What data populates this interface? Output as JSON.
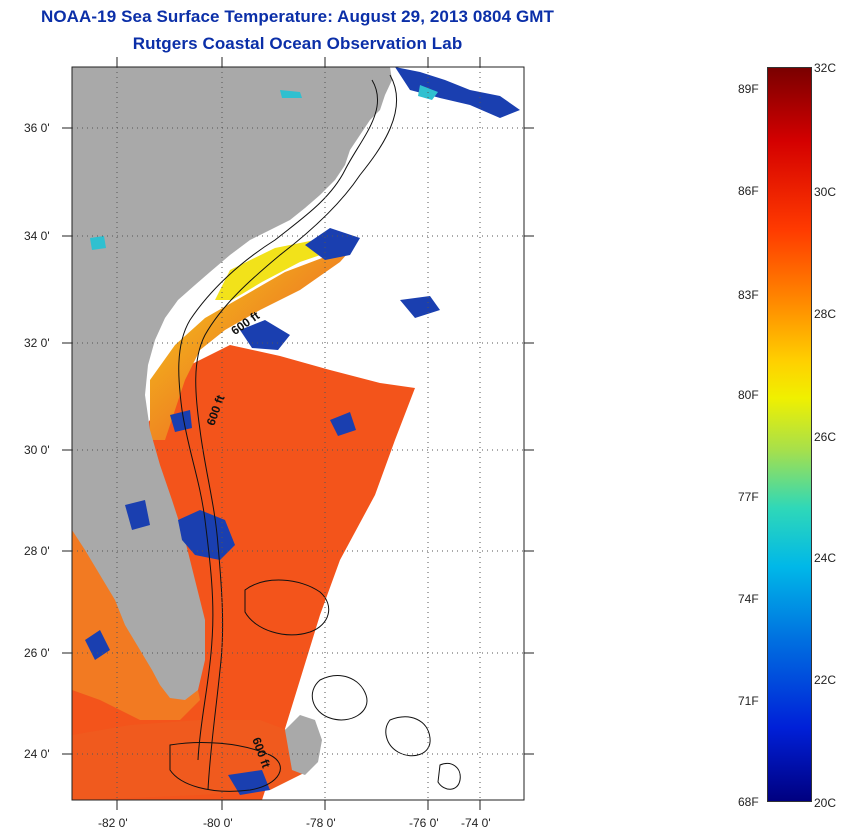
{
  "header": {
    "title": "NOAA-19 Sea Surface Temperature:  August 29, 2013 0804 GMT",
    "subtitle": "Rutgers Coastal Ocean Observation Lab"
  },
  "map": {
    "lat_labels": [
      "36 0'",
      "34 0'",
      "32 0'",
      "30 0'",
      "28 0'",
      "26 0'",
      "24 0'"
    ],
    "lon_labels": [
      "-82 0'",
      "-80 0'",
      "-78 0'",
      "-76 0'",
      "-74 0'"
    ],
    "contour_labels": [
      "600 ft",
      "600 ft",
      "600 ft"
    ],
    "colors": {
      "land": "#a9a9a9",
      "cloud": "#ffffff",
      "warm": "#f3541b",
      "cool": "#1a3fb0"
    }
  },
  "colorbar": {
    "fahrenheit_labels": [
      "89F",
      "86F",
      "83F",
      "80F",
      "77F",
      "74F",
      "71F",
      "68F"
    ],
    "celsius_labels": [
      "32C",
      "30C",
      "28C",
      "26C",
      "24C",
      "22C",
      "20C"
    ],
    "gradient": [
      "#7a0000",
      "#d40000",
      "#ff3a00",
      "#ff8a00",
      "#ffd000",
      "#f0f000",
      "#a8e04a",
      "#2fd8b8",
      "#00b8e8",
      "#0070e0",
      "#0020d8",
      "#000080"
    ]
  }
}
